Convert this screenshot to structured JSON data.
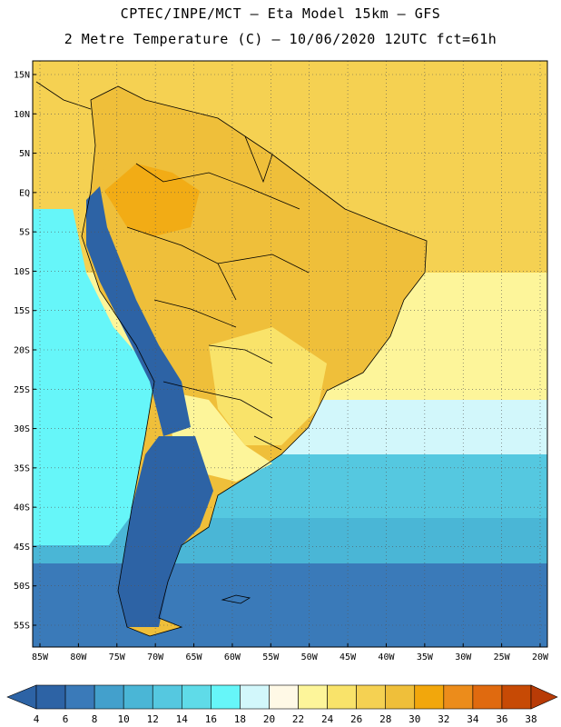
{
  "title_line1": "CPTEC/INPE/MCT –  Eta Model 15km – GFS",
  "title_line2": "2 Metre Temperature (C) – 10/06/2020 12UTC fct=61h",
  "lat_labels": [
    "15N",
    "10N",
    "5N",
    "EQ",
    "5S",
    "10S",
    "15S",
    "20S",
    "25S",
    "30S",
    "35S",
    "40S",
    "45S",
    "50S",
    "55S"
  ],
  "lon_labels": [
    "85W",
    "80W",
    "75W",
    "70W",
    "65W",
    "60W",
    "55W",
    "50W",
    "45W",
    "40W",
    "35W",
    "30W",
    "25W",
    "20W"
  ],
  "colorbar": {
    "labels": [
      "4",
      "6",
      "8",
      "10",
      "12",
      "14",
      "16",
      "18",
      "20",
      "22",
      "24",
      "26",
      "28",
      "30",
      "32",
      "34",
      "36",
      "38"
    ],
    "colors": [
      "#2d63a5",
      "#3a7ab9",
      "#43a0cc",
      "#4ab6d6",
      "#55c8e0",
      "#5fdbe8",
      "#66f6f9",
      "#d2f7fb",
      "#fff9e6",
      "#fdf59a",
      "#f9e36a",
      "#f5d152",
      "#efbf3a",
      "#f2a70c",
      "#ec8c1b",
      "#e06a0f",
      "#c74a05",
      "#b83b06"
    ]
  },
  "map_colors": {
    "ocean_tropical": "#f5d152",
    "ocean_subtrop": "#fdf59a",
    "ocean_mid": "#d2f7fb",
    "ocean_cool": "#55c8e0",
    "ocean_cold": "#4ab6d6",
    "ocean_south": "#3a7ab9",
    "pacific_cool": "#66f6f9",
    "land_hot": "#efbf3a",
    "land_hotter": "#f2a70c",
    "land_warm": "#f9e36a",
    "land_cool": "#fdf59a",
    "andes": "#2d63a5",
    "patagonia": "#2d63a5",
    "border": "#000000",
    "grid": "#555555"
  }
}
